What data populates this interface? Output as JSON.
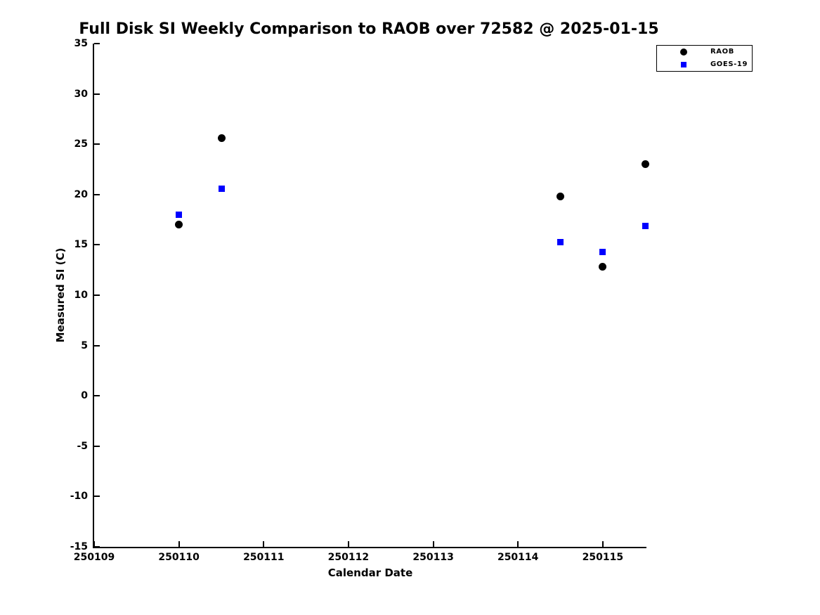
{
  "chart_data": {
    "type": "scatter",
    "title": "Full Disk SI Weekly Comparison to RAOB over 72582 @ 2025-01-15",
    "xlabel": "Calendar Date",
    "ylabel": "Measured SI (C)",
    "xlim": [
      250109,
      250115.515
    ],
    "ylim": [
      -15,
      35
    ],
    "x_ticks": [
      250109,
      250110,
      250111,
      250112,
      250113,
      250114,
      250115
    ],
    "y_ticks": [
      35,
      30,
      25,
      20,
      15,
      10,
      5,
      0,
      -5,
      -10,
      -15
    ],
    "grid": false,
    "legend_position": "top-right",
    "series": [
      {
        "name": "RAOB",
        "marker": "circle",
        "color": "#000000",
        "points": [
          {
            "x": 250110.0,
            "y": 17.0
          },
          {
            "x": 250110.5,
            "y": 25.6
          },
          {
            "x": 250114.5,
            "y": 19.8
          },
          {
            "x": 250115.0,
            "y": 12.8
          },
          {
            "x": 250115.5,
            "y": 23.0
          }
        ]
      },
      {
        "name": "GOES-19",
        "marker": "square",
        "color": "#0000ff",
        "points": [
          {
            "x": 250110.0,
            "y": 18.0
          },
          {
            "x": 250110.5,
            "y": 20.6
          },
          {
            "x": 250114.5,
            "y": 15.3
          },
          {
            "x": 250115.0,
            "y": 14.3
          },
          {
            "x": 250115.5,
            "y": 16.9
          }
        ]
      }
    ]
  }
}
